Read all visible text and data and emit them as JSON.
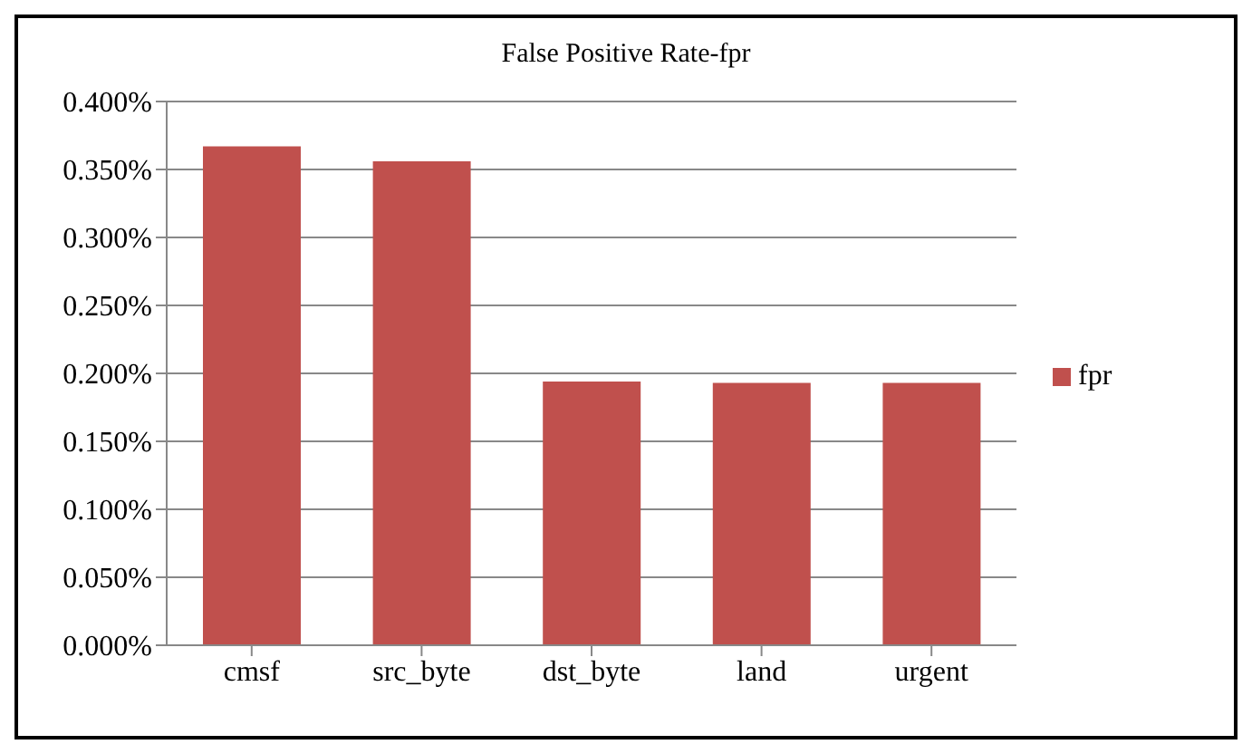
{
  "chart_data": {
    "type": "bar",
    "title": "False Positive Rate-fpr",
    "categories": [
      "cmsf",
      "src_byte",
      "dst_byte",
      "land",
      "urgent"
    ],
    "series": [
      {
        "name": "fpr",
        "color": "#c0504d",
        "values": [
          0.367,
          0.356,
          0.194,
          0.193,
          0.193
        ]
      }
    ],
    "ylim": [
      0,
      0.4
    ],
    "yticks": [
      {
        "value": 0,
        "label": "0.000%"
      },
      {
        "value": 0.05,
        "label": "0.050%"
      },
      {
        "value": 0.1,
        "label": "0.100%"
      },
      {
        "value": 0.15,
        "label": "0.150%"
      },
      {
        "value": 0.2,
        "label": "0.200%"
      },
      {
        "value": 0.25,
        "label": "0.250%"
      },
      {
        "value": 0.3,
        "label": "0.300%"
      },
      {
        "value": 0.35,
        "label": "0.350%"
      },
      {
        "value": 0.4,
        "label": "0.400%"
      }
    ],
    "grid": "y",
    "legend": "right"
  }
}
